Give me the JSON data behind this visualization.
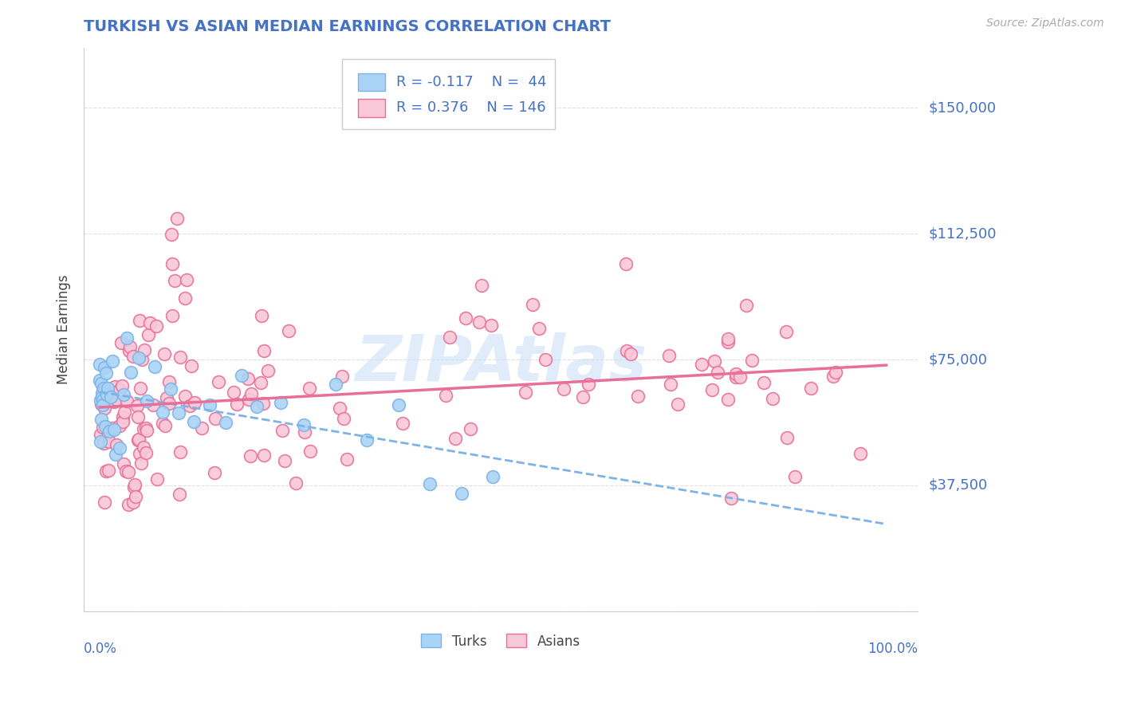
{
  "title": "TURKISH VS ASIAN MEDIAN EARNINGS CORRELATION CHART",
  "source": "Source: ZipAtlas.com",
  "ylabel": "Median Earnings",
  "yticks": [
    0,
    37500,
    75000,
    112500,
    150000
  ],
  "ytick_labels": [
    "",
    "$37,500",
    "$75,000",
    "$112,500",
    "$150,000"
  ],
  "title_color": "#4472c4",
  "source_color": "#aaaaaa",
  "axis_label_color": "#4472c4",
  "turks_fill_color": "#aad4f5",
  "turks_edge_color": "#7eb3e8",
  "asians_fill_color": "#f9c8d8",
  "asians_edge_color": "#e87098",
  "trend_turks_color": "#7eb3e8",
  "trend_asians_color": "#e87098",
  "R_turks": -0.117,
  "N_turks": 44,
  "R_asians": 0.376,
  "N_asians": 146,
  "background_color": "#ffffff",
  "grid_color": "#dddddd",
  "watermark_color": "#cce0f5"
}
